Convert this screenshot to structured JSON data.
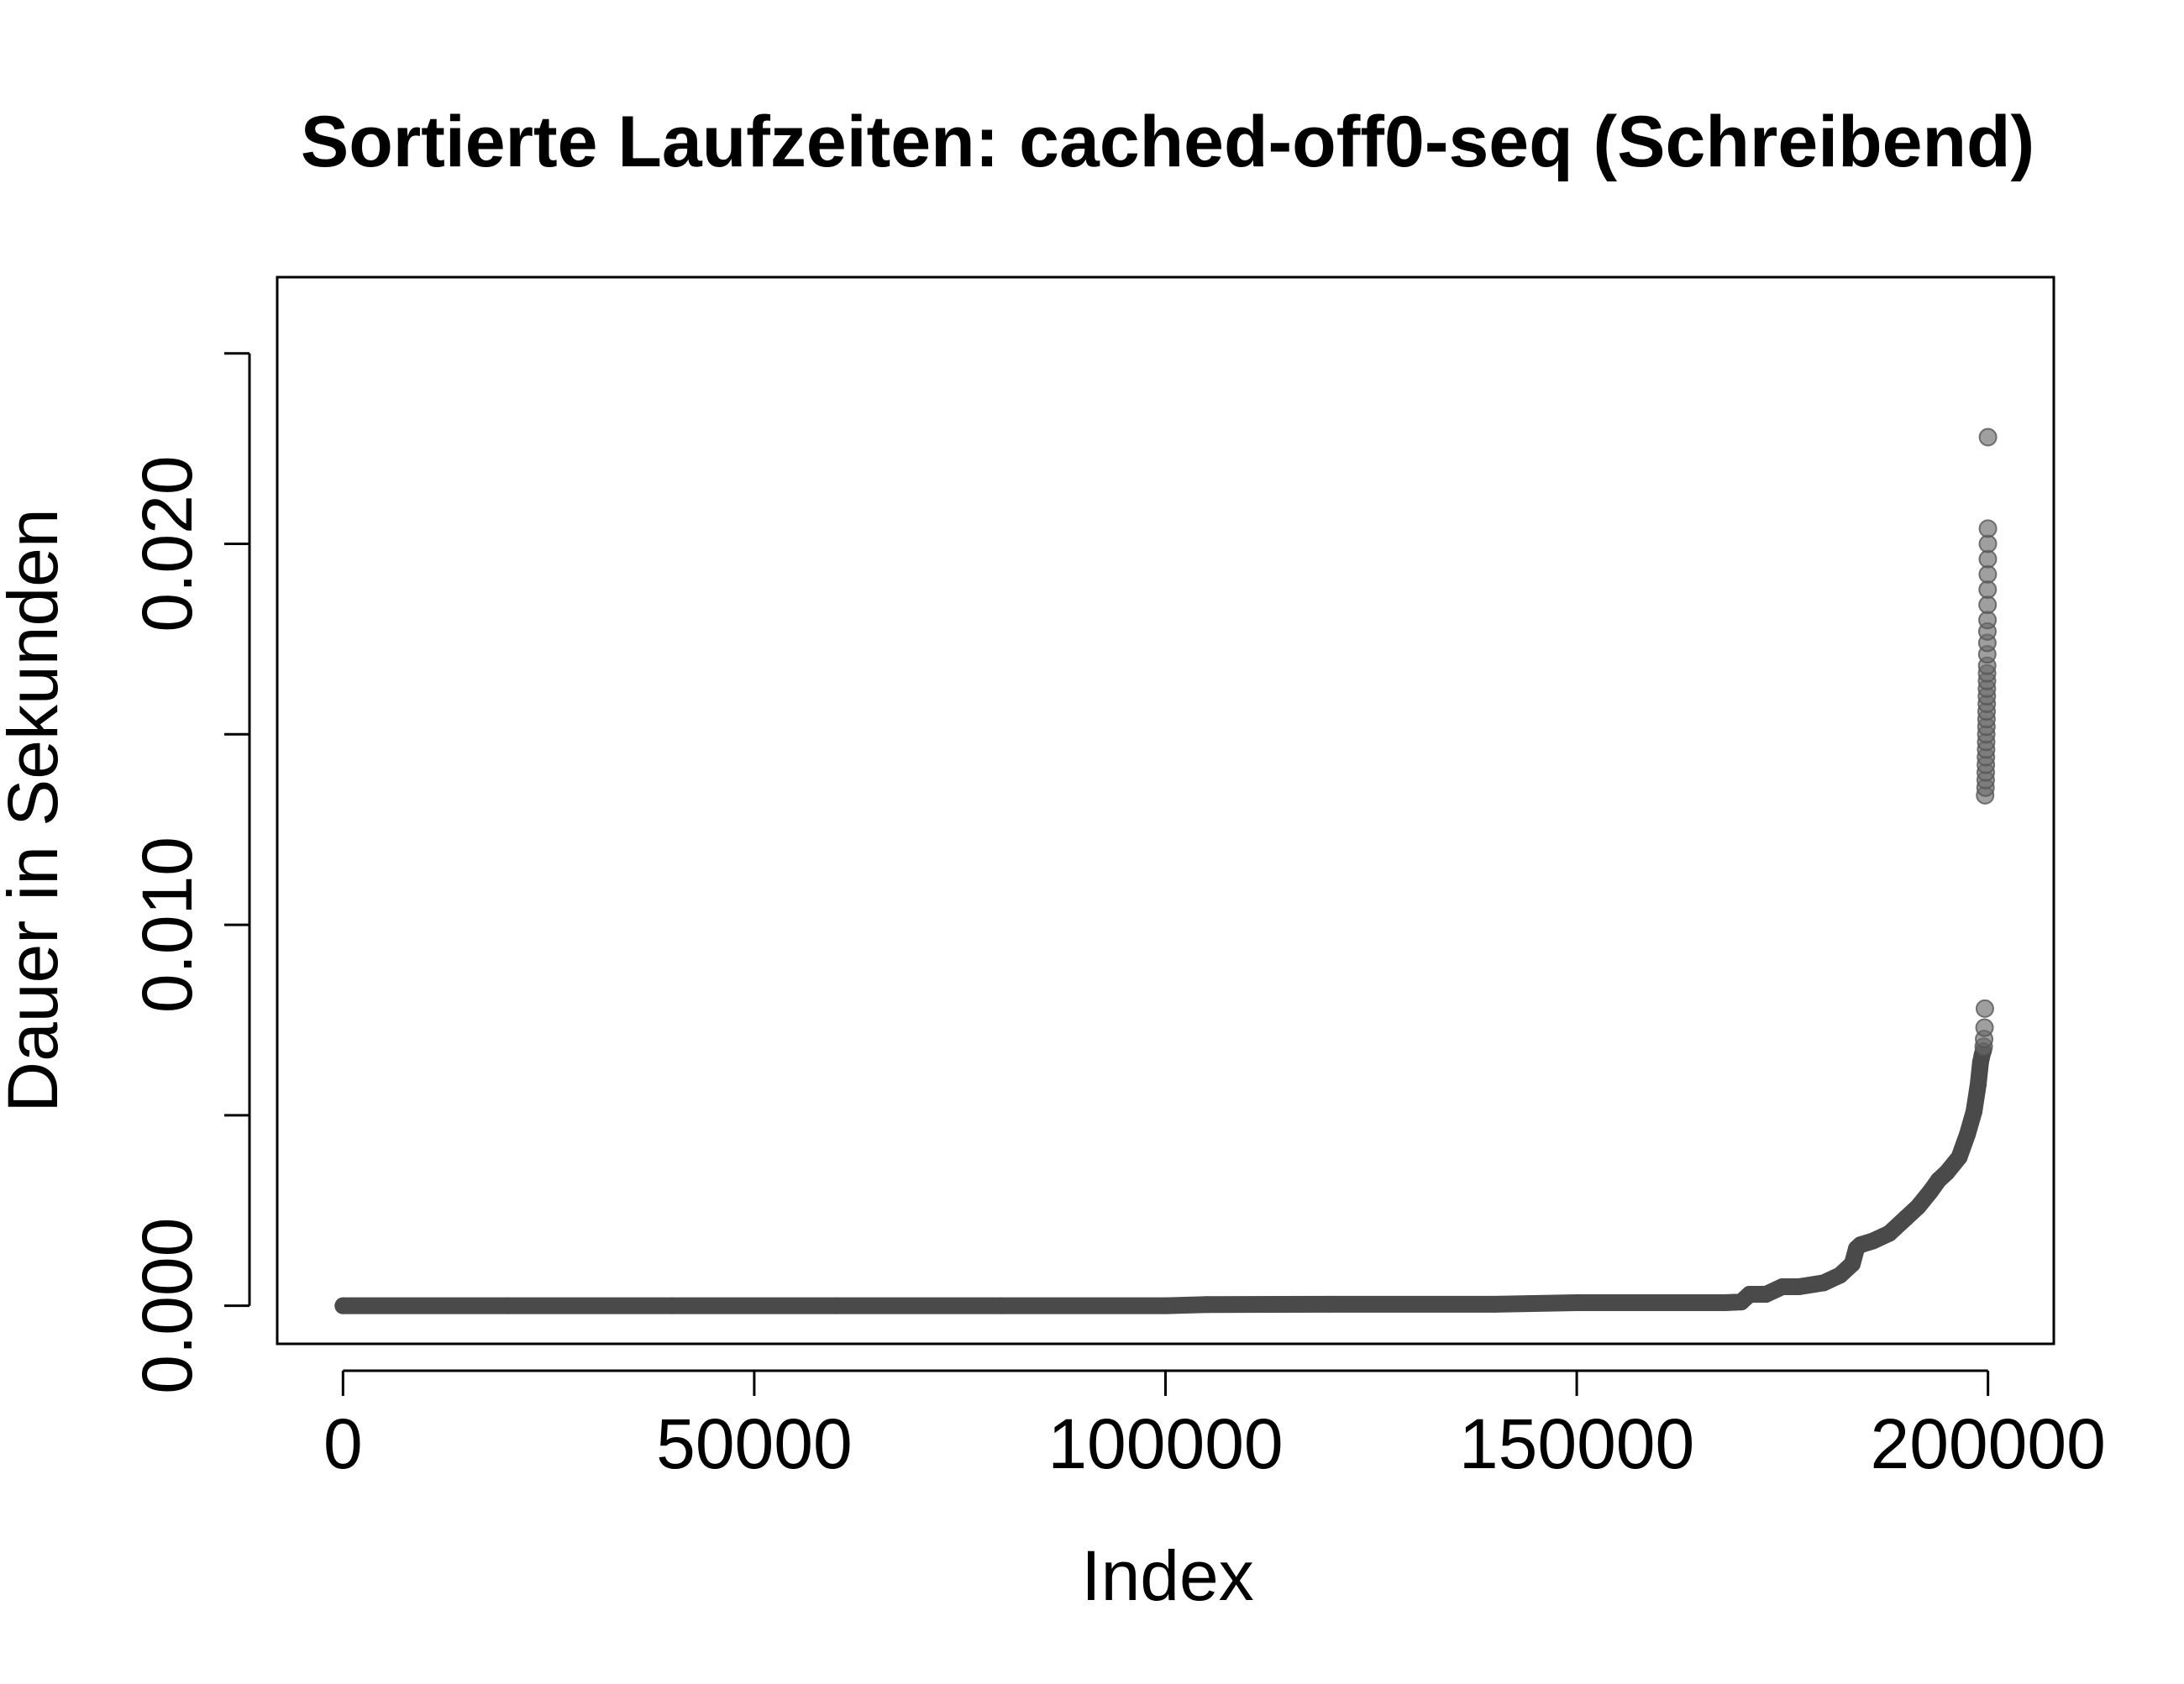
{
  "chart_data": {
    "type": "scatter",
    "title": "Sortierte Laufzeiten: cached-off0-seq (Schreibend)",
    "xlabel": "Index",
    "ylabel": "Dauer in Sekunden",
    "xlim": [
      -8000,
      208000
    ],
    "ylim": [
      -0.001,
      0.027
    ],
    "x_ticks": [
      0,
      50000,
      100000,
      150000,
      200000
    ],
    "x_tick_labels": [
      "0",
      "50000",
      "100000",
      "150000",
      "200000"
    ],
    "y_ticks": [
      0.0,
      0.005,
      0.01,
      0.015,
      0.02,
      0.025
    ],
    "y_tick_labels": [
      "0.000",
      "",
      "0.010",
      "",
      "0.020",
      ""
    ],
    "grid": false,
    "legend": "none",
    "point_color": "#4a4a4a",
    "series": [
      {
        "x": [
          0,
          20000,
          40000,
          60000,
          80000,
          100000,
          105000,
          120000,
          140000,
          150000,
          160000,
          168000,
          170000,
          171000,
          173000,
          175000,
          177000,
          180000,
          182000,
          183500,
          184000,
          184500,
          186000,
          188000,
          190000,
          191500,
          193000,
          194000,
          195000,
          196500,
          197500,
          198300,
          198800,
          199100,
          199300,
          199450
        ],
        "y": [
          0.0,
          0.0,
          0.0,
          0.0,
          0.0,
          0.0,
          3e-05,
          4e-05,
          4e-05,
          8e-05,
          8e-05,
          8e-05,
          0.0001,
          0.0003,
          0.0003,
          0.0005,
          0.0005,
          0.0006,
          0.0008,
          0.0011,
          0.0015,
          0.0016,
          0.0017,
          0.0019,
          0.0023,
          0.0026,
          0.003,
          0.0033,
          0.0035,
          0.0039,
          0.0045,
          0.0051,
          0.0058,
          0.0064,
          0.0066,
          0.0067
        ]
      },
      {
        "x": [
          199480,
          199530,
          199580,
          199620,
          199650,
          199700,
          199720,
          199730,
          199740,
          199750,
          199770,
          199780,
          199790,
          199810,
          199820,
          199830,
          199850,
          199860,
          199870,
          199880,
          199890,
          199900,
          199910,
          199920,
          199930,
          199940,
          199950,
          199960,
          199970,
          199980,
          199985,
          199990,
          199995
        ],
        "y": [
          0.0068,
          0.007,
          0.0073,
          0.0078,
          0.0134,
          0.0136,
          0.0138,
          0.014,
          0.0142,
          0.0144,
          0.0146,
          0.0148,
          0.015,
          0.0152,
          0.0154,
          0.0156,
          0.0158,
          0.016,
          0.0162,
          0.0164,
          0.0166,
          0.0168,
          0.0171,
          0.0174,
          0.0177,
          0.018,
          0.0184,
          0.0188,
          0.0192,
          0.0196,
          0.02,
          0.0204,
          0.0228
        ]
      }
    ]
  }
}
